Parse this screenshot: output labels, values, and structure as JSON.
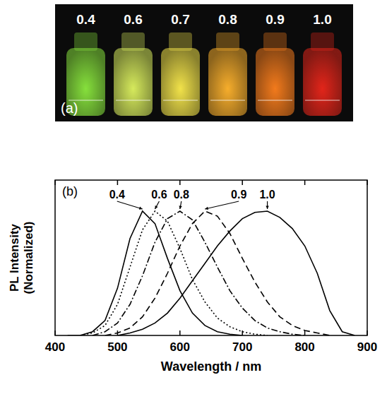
{
  "chart_data": [
    {
      "type": "vials",
      "title": "(a)",
      "categories": [
        "0.4",
        "0.6",
        "0.7",
        "0.8",
        "0.9",
        "1.0"
      ],
      "colors": [
        "#86e03c",
        "#d6ea5c",
        "#f1e24a",
        "#f6ad2c",
        "#f27a1c",
        "#e2251a"
      ]
    },
    {
      "type": "line",
      "title": "(b)",
      "xlabel": "Wavelength / nm",
      "ylabel": "PL Intensity (Normalized)",
      "xlim": [
        400,
        900
      ],
      "xticks": [
        400,
        500,
        600,
        700,
        800,
        900
      ],
      "ylim": [
        0,
        1.25
      ],
      "tick_labels": "x",
      "series": [
        {
          "name": "0.4",
          "color": "#000000",
          "line_style": "solid",
          "x": [
            420,
            440,
            460,
            480,
            500,
            520,
            540,
            560,
            580,
            600,
            620,
            640,
            660,
            680,
            700
          ],
          "values": [
            0,
            0,
            0.03,
            0.12,
            0.38,
            0.78,
            1.0,
            0.9,
            0.62,
            0.36,
            0.18,
            0.08,
            0.03,
            0.01,
            0
          ]
        },
        {
          "name": "0.6",
          "color": "#000000",
          "line_style": "dotted",
          "x": [
            440,
            460,
            480,
            500,
            520,
            540,
            560,
            580,
            600,
            620,
            640,
            660,
            680,
            700,
            720,
            740
          ],
          "values": [
            0,
            0.02,
            0.08,
            0.25,
            0.55,
            0.85,
            1.0,
            0.92,
            0.7,
            0.45,
            0.27,
            0.14,
            0.07,
            0.03,
            0.01,
            0
          ]
        },
        {
          "name": "0.8",
          "color": "#000000",
          "line_style": "dashdot",
          "x": [
            460,
            480,
            500,
            520,
            540,
            560,
            580,
            600,
            620,
            640,
            660,
            680,
            700,
            720,
            740,
            760,
            780,
            800
          ],
          "values": [
            0,
            0.03,
            0.1,
            0.25,
            0.48,
            0.75,
            0.94,
            1.0,
            0.93,
            0.75,
            0.55,
            0.36,
            0.22,
            0.12,
            0.06,
            0.03,
            0.01,
            0
          ]
        },
        {
          "name": "0.9",
          "color": "#000000",
          "line_style": "dashed",
          "x": [
            480,
            500,
            520,
            540,
            560,
            580,
            600,
            620,
            640,
            660,
            680,
            700,
            720,
            740,
            760,
            780,
            800,
            820,
            840
          ],
          "values": [
            0,
            0.02,
            0.06,
            0.15,
            0.3,
            0.5,
            0.72,
            0.9,
            1.0,
            0.96,
            0.82,
            0.62,
            0.43,
            0.27,
            0.15,
            0.08,
            0.04,
            0.02,
            0
          ]
        },
        {
          "name": "1.0",
          "color": "#000000",
          "line_style": "solid",
          "x": [
            500,
            520,
            540,
            560,
            580,
            600,
            620,
            640,
            660,
            680,
            700,
            720,
            740,
            760,
            780,
            800,
            820,
            840,
            860,
            880
          ],
          "values": [
            0,
            0.02,
            0.05,
            0.1,
            0.18,
            0.3,
            0.44,
            0.58,
            0.72,
            0.84,
            0.94,
            0.99,
            1.0,
            0.95,
            0.86,
            0.72,
            0.5,
            0.2,
            0.03,
            0
          ]
        }
      ]
    }
  ]
}
